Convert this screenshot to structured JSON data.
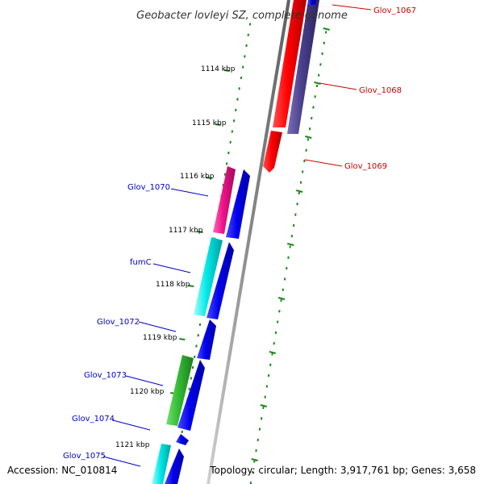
{
  "title": "Geobacter lovleyi SZ, complete genome",
  "accession": "Accession: NC_010814",
  "topology": "Topology: circular; Length: 3,917,761 bp; Genes: 3,658",
  "ticks": [
    {
      "label": "1114 kbp"
    },
    {
      "label": "1115 kbp"
    },
    {
      "label": "1116 kbp"
    },
    {
      "label": "1117 kbp"
    },
    {
      "label": "1118 kbp"
    },
    {
      "label": "1119 kbp"
    },
    {
      "label": "1120 kbp"
    },
    {
      "label": "1121 kbp"
    }
  ],
  "genes": [
    {
      "label": "Glov_1067",
      "strand": "plus",
      "color": "#cc0000"
    },
    {
      "label": "Glov_1068",
      "strand": "plus",
      "color": "#cc0000"
    },
    {
      "label": "Glov_1069",
      "strand": "plus",
      "color": "#cc0000"
    },
    {
      "label": "Glov_1070",
      "strand": "minus",
      "color": "#0000cc"
    },
    {
      "label": "fumC",
      "strand": "minus",
      "color": "#0000cc"
    },
    {
      "label": "Glov_1072",
      "strand": "minus",
      "color": "#0000cc"
    },
    {
      "label": "Glov_1073",
      "strand": "minus",
      "color": "#0000cc"
    },
    {
      "label": "Glov_1074",
      "strand": "minus",
      "color": "#0000cc"
    },
    {
      "label": "Glov_1075",
      "strand": "minus",
      "color": "#0000cc"
    }
  ],
  "colors": {
    "backbone": "#8a8a8a",
    "tick": "#1a8a1a",
    "red_feature": "#ee0000",
    "purple_feature": "#4a3f8c",
    "blue_feature": "#0000dd",
    "magenta_feature": "#ee1188",
    "cyan_feature": "#00e0e0",
    "green_feature": "#33bb33"
  }
}
